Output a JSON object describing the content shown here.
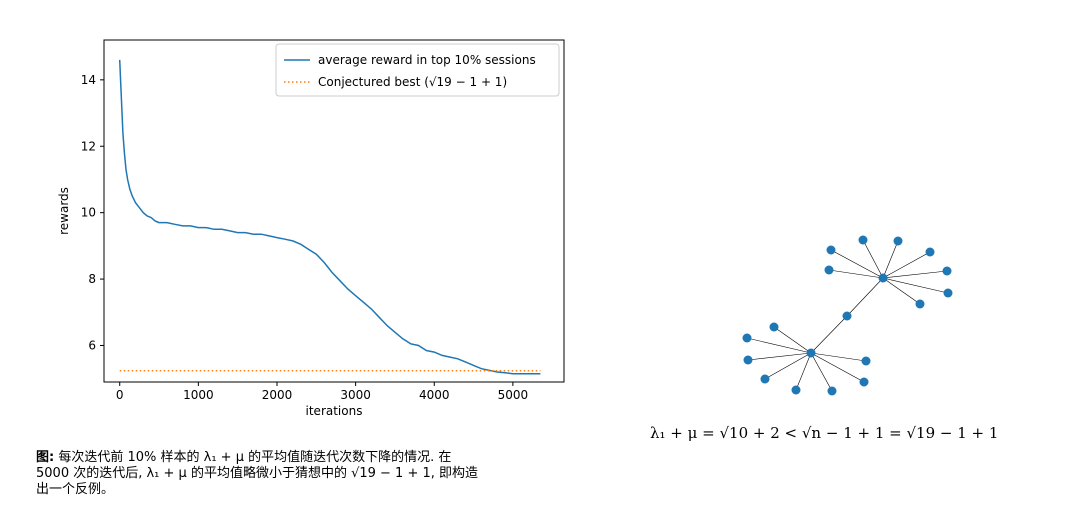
{
  "chart_data": {
    "type": "line",
    "xlabel": "iterations",
    "ylabel": "rewards",
    "xlim": [
      -200,
      5650
    ],
    "ylim": [
      4.9,
      15.2
    ],
    "xticks": [
      0,
      1000,
      2000,
      3000,
      4000,
      5000
    ],
    "yticks": [
      6,
      8,
      10,
      12,
      14
    ],
    "legend_position": "top-right",
    "series": [
      {
        "name": "average reward in top 10% sessions",
        "color": "#1f77b4",
        "x": [
          0,
          20,
          40,
          60,
          80,
          100,
          130,
          160,
          200,
          250,
          300,
          350,
          400,
          450,
          500,
          600,
          700,
          800,
          900,
          1000,
          1100,
          1200,
          1300,
          1400,
          1500,
          1600,
          1700,
          1800,
          1900,
          2000,
          2100,
          2200,
          2300,
          2400,
          2500,
          2600,
          2700,
          2800,
          2900,
          3000,
          3100,
          3200,
          3300,
          3400,
          3500,
          3600,
          3700,
          3800,
          3900,
          4000,
          4100,
          4200,
          4300,
          4400,
          4500,
          4600,
          4700,
          4800,
          4900,
          5000,
          5100,
          5200,
          5350
        ],
        "values": [
          14.6,
          13.5,
          12.4,
          11.8,
          11.3,
          11.0,
          10.7,
          10.5,
          10.3,
          10.15,
          10.0,
          9.9,
          9.85,
          9.75,
          9.7,
          9.7,
          9.65,
          9.6,
          9.6,
          9.55,
          9.55,
          9.5,
          9.5,
          9.45,
          9.4,
          9.4,
          9.35,
          9.35,
          9.3,
          9.25,
          9.2,
          9.15,
          9.05,
          8.9,
          8.75,
          8.5,
          8.2,
          7.95,
          7.7,
          7.5,
          7.3,
          7.1,
          6.85,
          6.6,
          6.4,
          6.2,
          6.05,
          6.0,
          5.85,
          5.8,
          5.7,
          5.65,
          5.6,
          5.5,
          5.4,
          5.3,
          5.25,
          5.2,
          5.18,
          5.15,
          5.15,
          5.15,
          5.15
        ]
      },
      {
        "name": "Conjectured best (√19 − 1 + 1)",
        "color": "#ff7f0e",
        "style": "dotted",
        "x": [
          0,
          5350
        ],
        "values": [
          5.24,
          5.24
        ]
      }
    ]
  },
  "caption": {
    "label": "图:",
    "line1": " 每次迭代前 10% 样本的 λ₁ + μ 的平均值随迭代次数下降的情况. 在",
    "line2": "5000 次的迭代后, λ₁ + μ 的平均值略微小于猜想中的 √19 − 1 + 1, 即构造",
    "line3": "出一个反例。"
  },
  "formula": {
    "text": "λ₁ + μ = √10 + 2 < √n − 1 + 1 = √19 − 1 + 1"
  },
  "graph": {
    "node_color": "#1f77b4",
    "edge_color": "#000000"
  }
}
